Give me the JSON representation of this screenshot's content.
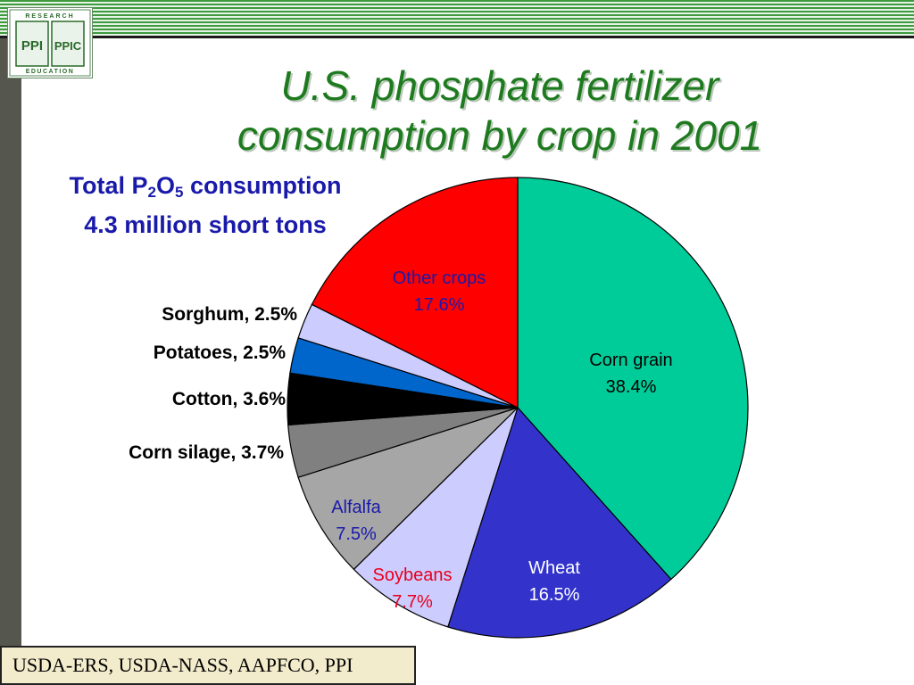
{
  "logo": {
    "top_text": "RESEARCH",
    "bottom_text": "EDUCATION",
    "left_mark": "PPI",
    "right_mark": "PPIC"
  },
  "title": "U.S. phosphate fertilizer consumption by crop in 2001",
  "subtitle": {
    "line1_prefix": "Total P",
    "line1_sub1": "2",
    "line1_mid": "O",
    "line1_sub2": "5",
    "line1_suffix": " consumption",
    "line2": "4.3 million short tons"
  },
  "source": "USDA-ERS, USDA-NASS, AAPFCO, PPI",
  "chart_data": {
    "type": "pie",
    "start_angle": "12 o'clock",
    "direction": "clockwise",
    "slices": [
      {
        "name": "Corn grain",
        "value": 38.4,
        "label": "38.4%",
        "color": "#00cc99",
        "text_color": "#000000"
      },
      {
        "name": "Wheat",
        "value": 16.5,
        "label": "16.5%",
        "color": "#3333cc",
        "text_color": "#ffffff"
      },
      {
        "name": "Soybeans",
        "value": 7.7,
        "label": "7.7%",
        "color": "#ccccff",
        "text_color": "#e8001c"
      },
      {
        "name": "Alfalfa",
        "value": 7.5,
        "label": "7.5%",
        "color": "#a6a6a6",
        "text_color": "#1a1aaa"
      },
      {
        "name": "Corn silage",
        "value": 3.7,
        "label": "Corn silage, 3.7%",
        "color": "#808080",
        "text_color": "#000000"
      },
      {
        "name": "Cotton",
        "value": 3.6,
        "label": "Cotton, 3.6%",
        "color": "#000000",
        "text_color": "#000000"
      },
      {
        "name": "Potatoes",
        "value": 2.5,
        "label": "Potatoes, 2.5%",
        "color": "#0066cc",
        "text_color": "#000000"
      },
      {
        "name": "Sorghum",
        "value": 2.5,
        "label": "Sorghum, 2.5%",
        "color": "#ccccff",
        "text_color": "#000000"
      },
      {
        "name": "Other crops",
        "value": 17.6,
        "label": "17.6%",
        "color": "#ff0000",
        "text_color": "#1a1aaa"
      }
    ]
  }
}
